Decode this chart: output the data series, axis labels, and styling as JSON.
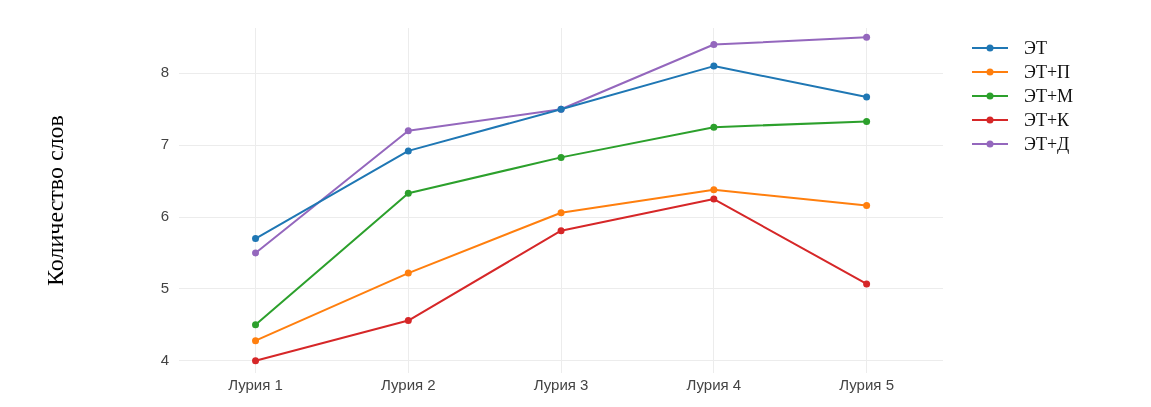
{
  "chart_data": {
    "type": "line",
    "ylabel": "Количество слов",
    "categories": [
      "Лурия 1",
      "Лурия 2",
      "Лурия 3",
      "Лурия 4",
      "Лурия 5"
    ],
    "series": [
      {
        "name": "ЭТ",
        "color": "#1f77b4",
        "values": [
          5.7,
          6.92,
          7.5,
          8.1,
          7.67
        ]
      },
      {
        "name": "ЭТ+П",
        "color": "#ff7f0e",
        "values": [
          4.28,
          5.22,
          6.06,
          6.38,
          6.16
        ]
      },
      {
        "name": "ЭТ+М",
        "color": "#2ca02c",
        "values": [
          4.5,
          6.33,
          6.83,
          7.25,
          7.33
        ]
      },
      {
        "name": "ЭТ+К",
        "color": "#d62728",
        "values": [
          4.0,
          4.56,
          5.81,
          6.25,
          5.07
        ]
      },
      {
        "name": "ЭТ+Д",
        "color": "#9467bd",
        "values": [
          5.5,
          7.2,
          7.5,
          8.4,
          8.5
        ]
      }
    ],
    "ylim": [
      3.83,
      8.63
    ],
    "yticks": [
      4,
      5,
      6,
      7,
      8
    ],
    "grid": true,
    "legend": "top right",
    "marker": "circle",
    "line_style": "solid"
  }
}
